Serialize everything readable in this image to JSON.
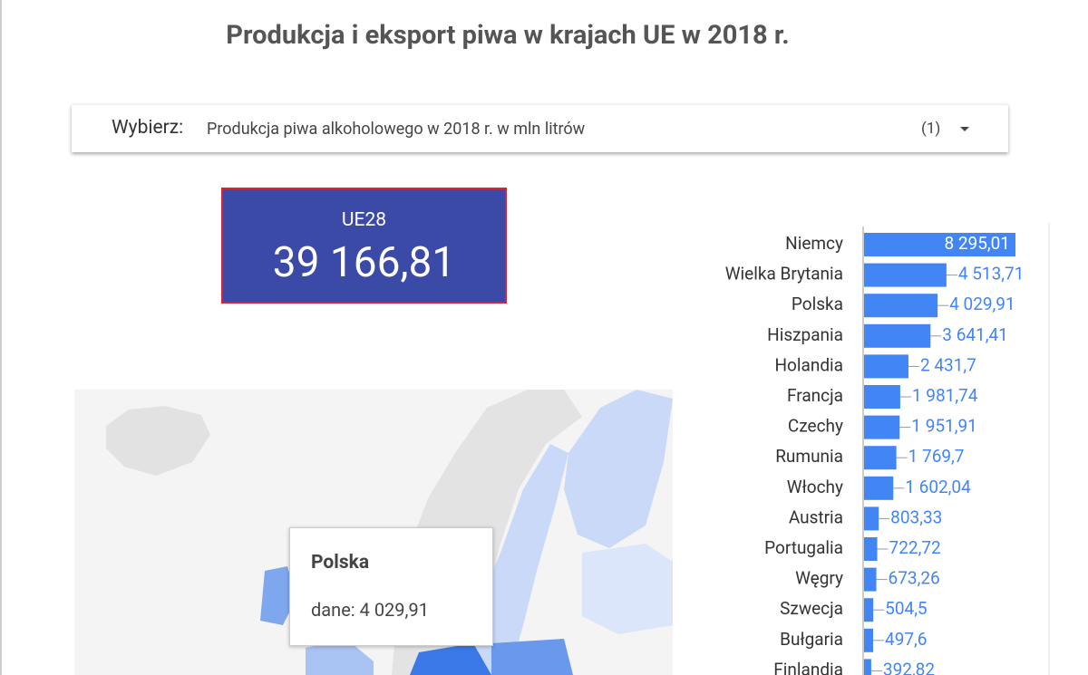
{
  "header": {
    "title": "Produkcja i eksport piwa w krajach UE w 2018 r."
  },
  "selector": {
    "label": "Wybierz:",
    "value": "Produkcja piwa alkoholowego w 2018 r. w mln litrów",
    "count": "(1)"
  },
  "kpi": {
    "label": "UE28",
    "value": "39 166,81"
  },
  "tooltip": {
    "title": "Polska",
    "text": "dane: 4 029,91"
  },
  "chart_data": {
    "type": "bar",
    "orientation": "horizontal",
    "color": "#4285f4",
    "categories": [
      "Niemcy",
      "Wielka Brytania",
      "Polska",
      "Hiszpania",
      "Holandia",
      "Francja",
      "Czechy",
      "Rumunia",
      "Włochy",
      "Austria",
      "Portugalia",
      "Węgry",
      "Szwecja",
      "Bułgaria",
      "Finlandia"
    ],
    "values": [
      8295.01,
      4513.71,
      4029.91,
      3641.41,
      2431.7,
      1981.74,
      1951.91,
      1769.7,
      1602.04,
      803.33,
      722.72,
      673.26,
      504.5,
      497.6,
      392.82
    ],
    "value_labels": [
      "8 295,01",
      "4 513,71",
      "4 029,91",
      "3 641,41",
      "2 431,7",
      "1 981,74",
      "1 951,91",
      "1 769,7",
      "1 602,04",
      "803,33",
      "722,72",
      "673,26",
      "504,5",
      "497,6",
      "392,82"
    ]
  }
}
